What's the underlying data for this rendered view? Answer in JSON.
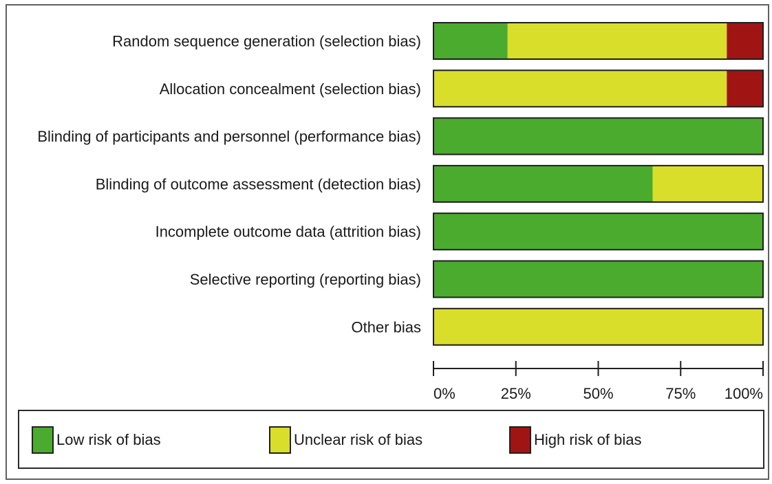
{
  "chart_data": {
    "type": "bar",
    "orientation": "horizontal",
    "stacked": true,
    "categories": [
      "Random sequence generation (selection bias)",
      "Allocation concealment (selection bias)",
      "Blinding of participants and personnel (performance bias)",
      "Blinding of outcome assessment (detection bias)",
      "Incomplete outcome data (attrition bias)",
      "Selective reporting (reporting bias)",
      "Other bias"
    ],
    "series": [
      {
        "name": "Low risk of bias",
        "color": "#4bab2e",
        "values": [
          22.5,
          0,
          100,
          66.5,
          100,
          100,
          0
        ]
      },
      {
        "name": "Unclear risk of bias",
        "color": "#d9de2a",
        "values": [
          66.5,
          89,
          0,
          33.5,
          0,
          0,
          100
        ]
      },
      {
        "name": "High risk of bias",
        "color": "#a11414",
        "values": [
          11,
          11,
          0,
          0,
          0,
          0,
          0
        ]
      }
    ],
    "xlim": [
      0,
      100
    ],
    "x_ticks": [
      0,
      25,
      50,
      75,
      100
    ],
    "x_tick_labels": [
      "0%",
      "25%",
      "50%",
      "75%",
      "100%"
    ],
    "grid": false,
    "legend_position": "bottom"
  },
  "legend": {
    "items": [
      {
        "label": "Low risk of bias",
        "color": "#4bab2e"
      },
      {
        "label": "Unclear risk of bias",
        "color": "#d9de2a"
      },
      {
        "label": "High risk of bias",
        "color": "#a11414"
      }
    ]
  }
}
